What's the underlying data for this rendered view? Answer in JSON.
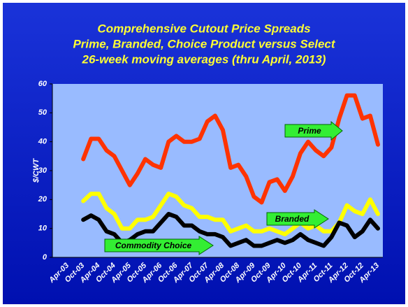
{
  "chart_data": {
    "type": "line",
    "title": [
      "Comprehensive Cutout Price Spreads",
      "Prime, Branded, Choice Product versus Select",
      "26-week moving averages (thru April, 2013)"
    ],
    "y_label": "$/CWT",
    "categories": [
      "Apr-03",
      null,
      "Oct-03",
      null,
      "Apr-04",
      null,
      "Oct-04",
      null,
      "Apr-05",
      null,
      "Oct-05",
      null,
      "Apr-06",
      null,
      "Oct-06",
      null,
      "Apr-07",
      null,
      "Oct-07",
      null,
      "Apr-08",
      null,
      "Oct-08",
      null,
      "Apr-09",
      null,
      "Oct-09",
      null,
      "Apr-10",
      null,
      "Oct-10",
      null,
      "Apr-11",
      null,
      "Oct-11",
      null,
      "Apr-12",
      null,
      "Oct-12",
      null,
      "Apr-13"
    ],
    "series": [
      {
        "name": "Prime",
        "color": "#ff3300",
        "values": [
          null,
          null,
          34,
          41,
          41,
          37,
          35,
          30,
          25,
          29,
          34,
          32,
          31,
          40,
          42,
          40,
          40,
          41,
          47,
          49,
          44,
          31,
          32,
          28,
          21,
          19,
          26,
          27,
          23,
          28,
          36,
          40,
          37,
          35,
          38,
          48,
          56,
          56,
          48,
          49,
          39
        ]
      },
      {
        "name": "Branded",
        "color": "#ffff00",
        "values": [
          null,
          null,
          19.5,
          22,
          22,
          17,
          15,
          10,
          10,
          13,
          13,
          14,
          18,
          22,
          21,
          18,
          17,
          14,
          14,
          13,
          13,
          9,
          10,
          11,
          9,
          9,
          10,
          9,
          8,
          10,
          12,
          10,
          11,
          9,
          9,
          12,
          18,
          16,
          15,
          20,
          15
        ]
      },
      {
        "name": "Commodity Choice",
        "color": "#000000",
        "values": [
          null,
          null,
          13,
          14.5,
          13,
          9,
          8,
          5,
          6,
          8,
          9,
          9,
          12,
          15,
          14,
          11,
          11,
          9,
          8,
          8,
          7,
          4,
          5,
          6,
          4,
          4,
          5,
          6,
          5,
          6,
          8,
          6,
          5,
          4,
          7,
          12,
          11,
          7,
          9,
          13,
          10
        ]
      }
    ],
    "ylim": [
      0,
      60
    ],
    "yticks": [
      0,
      10,
      20,
      30,
      40,
      50,
      60
    ],
    "grid": false
  }
}
